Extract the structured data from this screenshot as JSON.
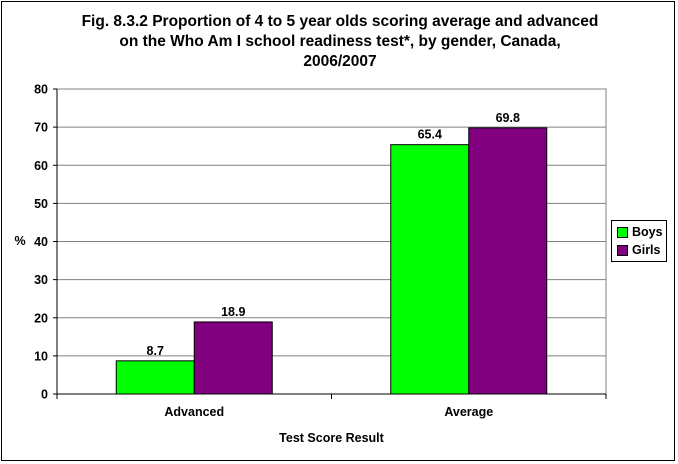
{
  "chart_data": {
    "type": "bar",
    "title_lines": [
      "Fig. 8.3.2 Proportion of 4 to 5 year olds scoring average and advanced",
      "on the Who Am I school readiness test*, by gender, Canada,",
      "2006/2007"
    ],
    "xlabel": "Test Score Result",
    "ylabel": "%",
    "ylim": [
      0,
      80
    ],
    "yticks": [
      0,
      10,
      20,
      30,
      40,
      50,
      60,
      70,
      80
    ],
    "categories": [
      "Advanced",
      "Average"
    ],
    "series": [
      {
        "name": "Boys",
        "values": [
          8.7,
          65.4
        ],
        "color": "#00ff00"
      },
      {
        "name": "Girls",
        "values": [
          18.9,
          69.8
        ],
        "color": "#800080"
      }
    ],
    "grid": true,
    "legend_position": "right",
    "plot_background": "#ffffff"
  }
}
